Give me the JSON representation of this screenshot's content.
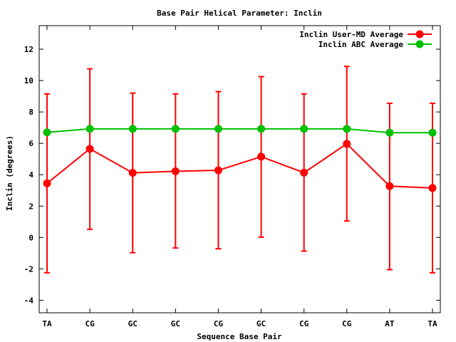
{
  "chart_data": {
    "type": "line",
    "title": "Base Pair Helical Parameter: Inclin",
    "xlabel": "Sequence Base Pair",
    "ylabel": "Inclin (degrees)",
    "categories": [
      "TA",
      "CG",
      "GC",
      "GC",
      "CG",
      "GC",
      "CG",
      "CG",
      "AT",
      "TA"
    ],
    "ylim": [
      -4.8,
      13.5
    ],
    "yticks": [
      -4,
      -2,
      0,
      2,
      4,
      6,
      8,
      10,
      12
    ],
    "ytick_labels": [
      "-4",
      "-2",
      "0",
      "2",
      "4",
      "6",
      "8",
      "10",
      "12"
    ],
    "legend_position": "top-right",
    "grid": false,
    "series": [
      {
        "name": "Inclin User-MD Average",
        "color": "#ff0000",
        "values": [
          3.45,
          5.65,
          4.12,
          4.22,
          4.28,
          5.15,
          4.13,
          5.97,
          3.27,
          3.15
        ],
        "error_low": [
          -2.25,
          0.52,
          -0.97,
          -0.67,
          -0.72,
          0.02,
          -0.87,
          1.05,
          -2.05,
          -2.25
        ],
        "error_high": [
          9.15,
          10.75,
          9.2,
          9.15,
          9.3,
          10.25,
          9.15,
          10.9,
          8.55,
          8.55
        ]
      },
      {
        "name": "Inclin ABC Average",
        "color": "#00c000",
        "values": [
          6.7,
          6.92,
          6.92,
          6.92,
          6.92,
          6.92,
          6.92,
          6.92,
          6.68,
          6.68
        ]
      }
    ]
  }
}
